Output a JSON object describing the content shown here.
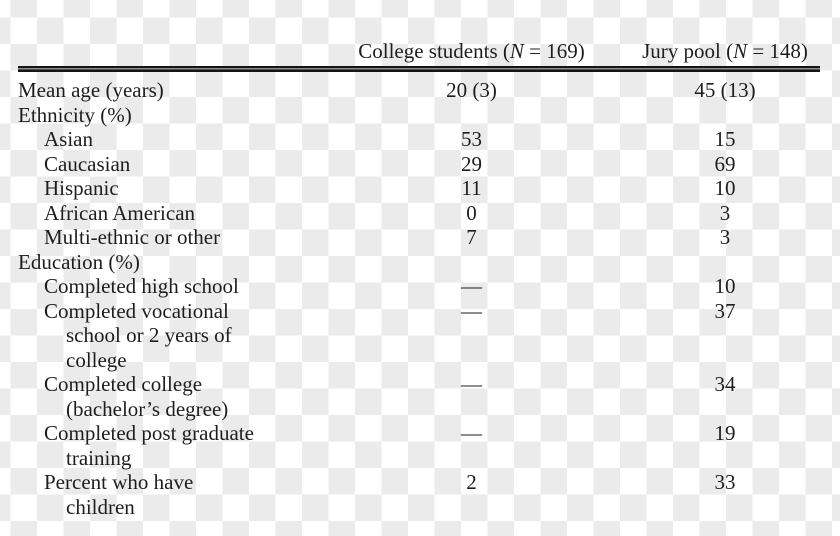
{
  "table": {
    "header": {
      "college": {
        "pre": "College students (",
        "n": "N",
        "post": " = 169)"
      },
      "jury": {
        "pre": "Jury pool (",
        "n": "N",
        "post": " = 148)"
      }
    },
    "rows": [
      {
        "label": "Mean age (years)",
        "indent": 0,
        "college": "20 (3)",
        "jury": "45 (13)"
      },
      {
        "label": "Ethnicity (%)",
        "indent": 0,
        "college": "",
        "jury": ""
      },
      {
        "label": "Asian",
        "indent": 1,
        "college": "53",
        "jury": "15"
      },
      {
        "label": "Caucasian",
        "indent": 1,
        "college": "29",
        "jury": "69"
      },
      {
        "label": "Hispanic",
        "indent": 1,
        "college": "11",
        "jury": "10"
      },
      {
        "label": "African American",
        "indent": 1,
        "college": "0",
        "jury": "3"
      },
      {
        "label": "Multi-ethnic or other",
        "indent": 1,
        "college": "7",
        "jury": "3"
      },
      {
        "label": "Education (%)",
        "indent": 0,
        "college": "",
        "jury": ""
      },
      {
        "label": "Completed high school",
        "indent": 1,
        "college": "—",
        "jury": "10"
      },
      {
        "label": "Completed vocational\nschool or 2 years of\ncollege",
        "indent": 1,
        "college": "—",
        "jury": "37"
      },
      {
        "label": "Completed college\n(bachelor’s degree)",
        "indent": 1,
        "college": "—",
        "jury": "34"
      },
      {
        "label": "Completed post graduate\ntraining",
        "indent": 1,
        "college": "—",
        "jury": "19"
      },
      {
        "label": "Percent who have\nchildren",
        "indent": 1,
        "college": "2",
        "jury": "33"
      }
    ],
    "colors": {
      "checker_gray": "#ebebeb",
      "checker_white": "#ffffff",
      "text": "#1e1e1e",
      "rule": "#151515"
    }
  }
}
